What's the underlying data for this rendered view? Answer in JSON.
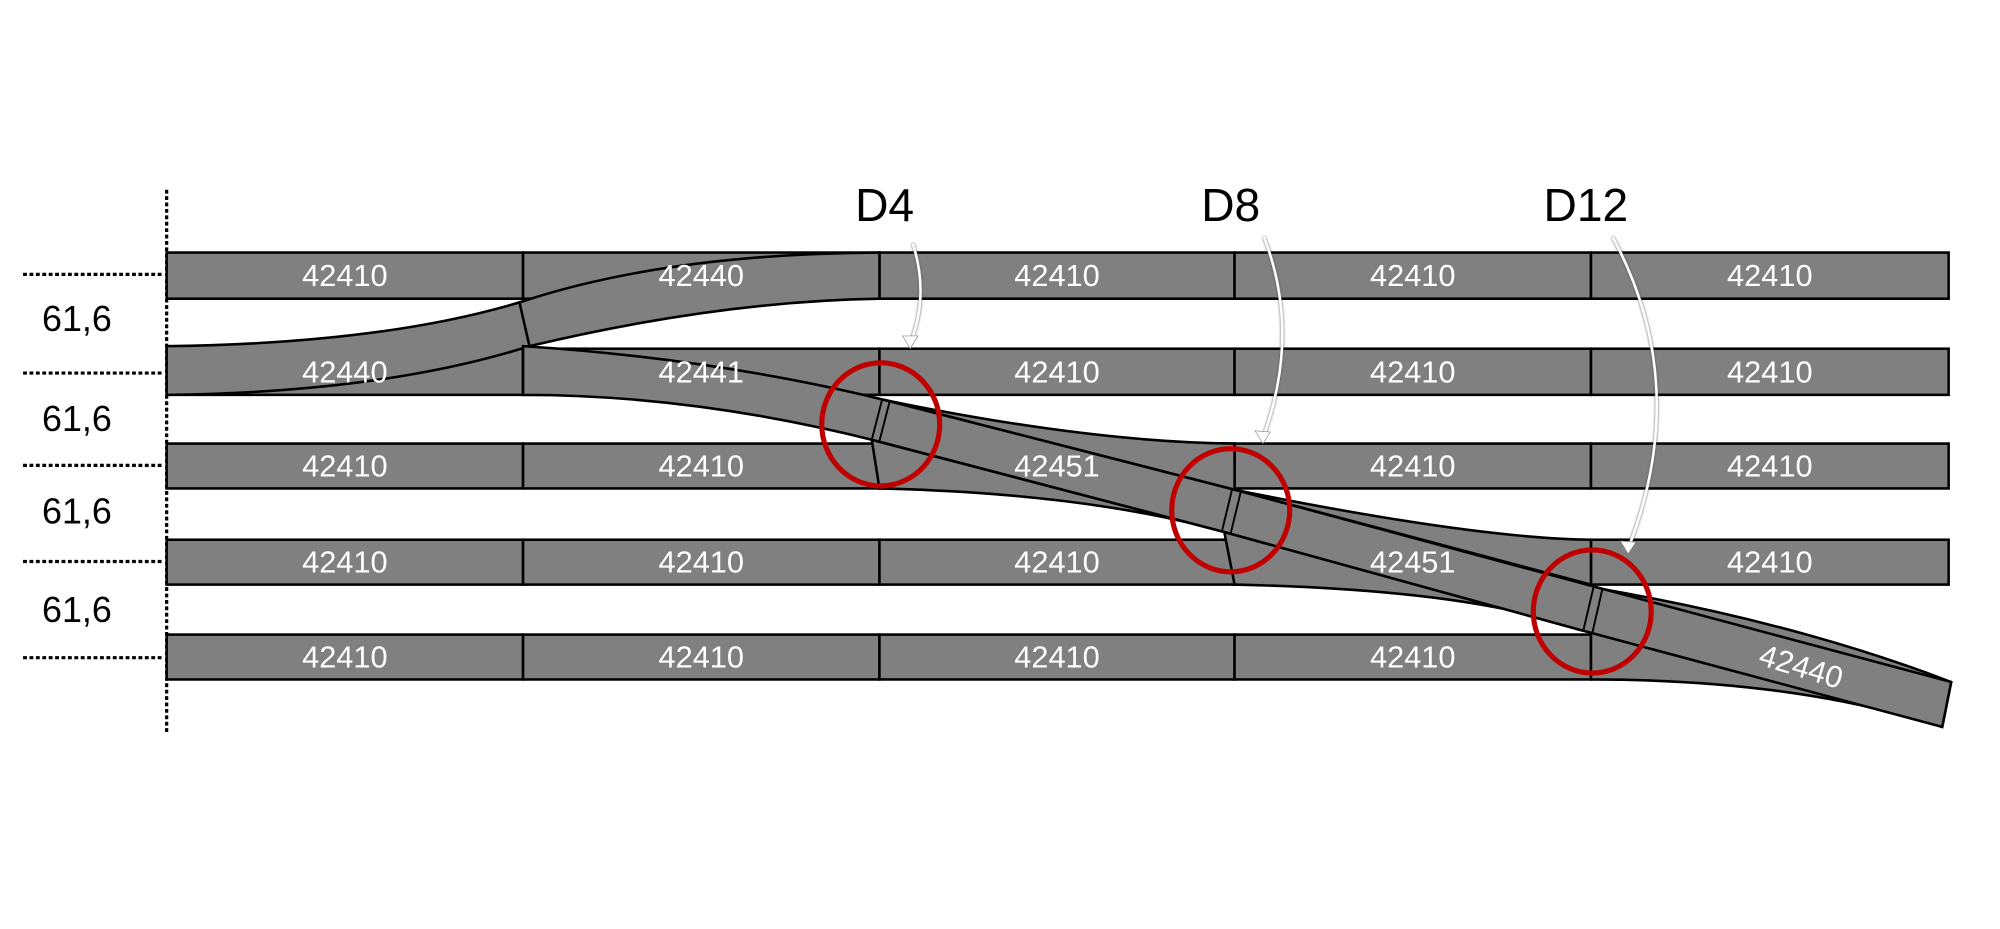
{
  "dimension_labels": [
    "61,6",
    "61,6",
    "61,6",
    "61,6"
  ],
  "tracks": [
    [
      "42410",
      "42440",
      "42410",
      "42410",
      "42410"
    ],
    [
      "42440",
      "42441",
      "42410",
      "42410",
      "42410"
    ],
    [
      "42410",
      "42410",
      "42451",
      "42410",
      "42410"
    ],
    [
      "42410",
      "42410",
      "42410",
      "42451",
      "42410"
    ],
    [
      "42410",
      "42410",
      "42410",
      "42410",
      ""
    ]
  ],
  "end_piece_label": "42440",
  "callouts": [
    "D4",
    "D8",
    "D12"
  ],
  "colors": {
    "track": "#808080",
    "highlight": "#c00000",
    "track_label": "#ffffff"
  }
}
